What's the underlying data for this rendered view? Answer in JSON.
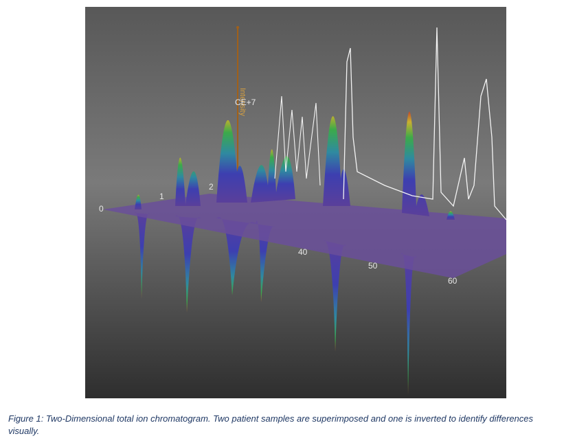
{
  "figure": {
    "zero_label": "0",
    "depth_ticks": [
      "1",
      "2"
    ],
    "intensity_label": "Intensity",
    "intensity_scale": "CE+7",
    "x_ticks": [
      "40",
      "50",
      "60"
    ]
  },
  "caption": "Figure 1: Two-Dimensional total ion chromatogram. Two patient samples are superimposed and one is inverted to identify differences visually."
}
